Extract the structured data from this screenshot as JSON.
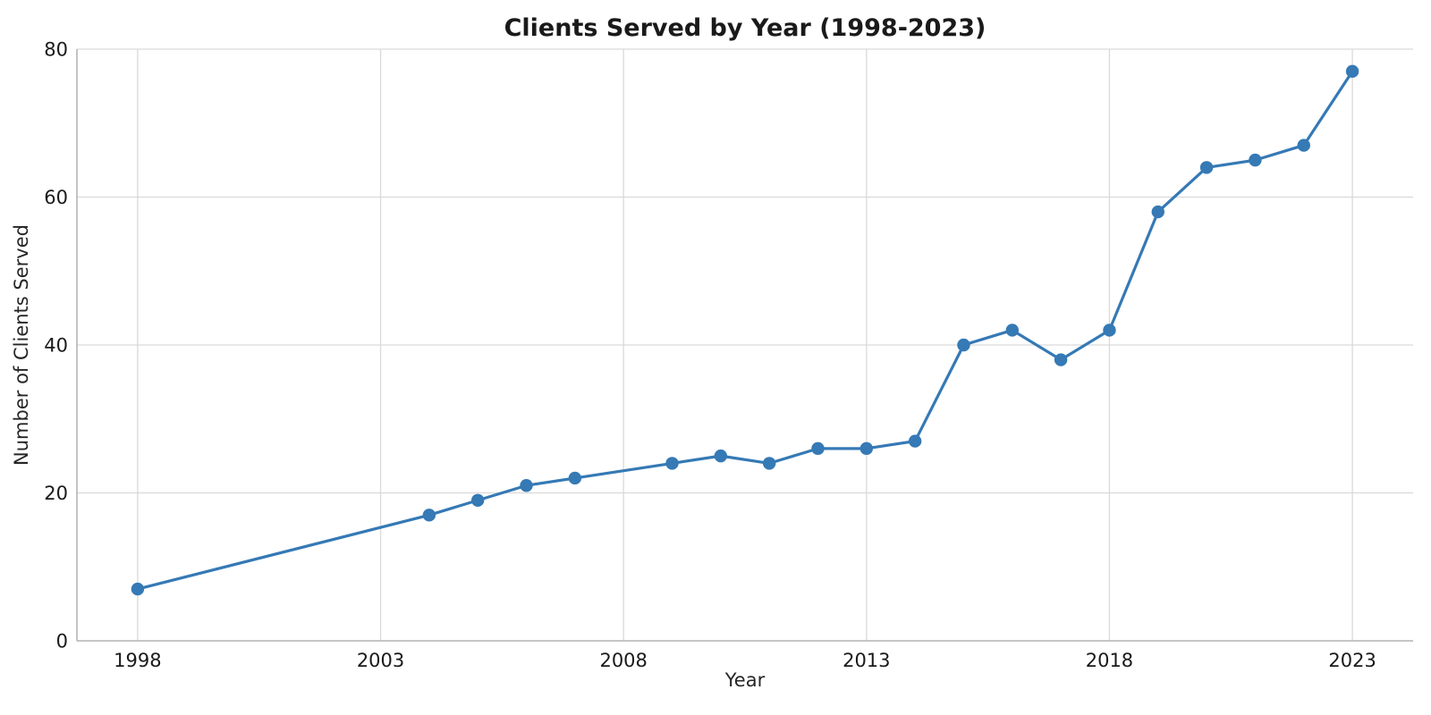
{
  "figure": {
    "background": "#ffffff"
  },
  "chart_data": {
    "type": "line",
    "title": "Clients Served by Year (1998-2023)",
    "xlabel": "Year",
    "ylabel": "Number of Clients Served",
    "x": [
      1998,
      2004,
      2005,
      2006,
      2007,
      2009,
      2010,
      2011,
      2012,
      2013,
      2014,
      2015,
      2016,
      2017,
      2018,
      2019,
      2020,
      2021,
      2022,
      2023
    ],
    "y": [
      7,
      17,
      19,
      21,
      22,
      24,
      25,
      24,
      26,
      26,
      27,
      40,
      42,
      38,
      42,
      58,
      64,
      65,
      67,
      77
    ],
    "xticks": [
      1998,
      2003,
      2008,
      2013,
      2018,
      2023
    ],
    "yticks": [
      0,
      20,
      40,
      60,
      80
    ],
    "xlim": [
      1996.75,
      2024.25
    ],
    "ylim": [
      0,
      80
    ],
    "grid": true,
    "legend_position": "none",
    "line_color": "#3579b5",
    "marker": "circle",
    "marker_color": "#3579b5",
    "grid_color": "#d9d9d9",
    "spine_color": "#b5b5b5",
    "text_color": "#1a1a1a"
  }
}
